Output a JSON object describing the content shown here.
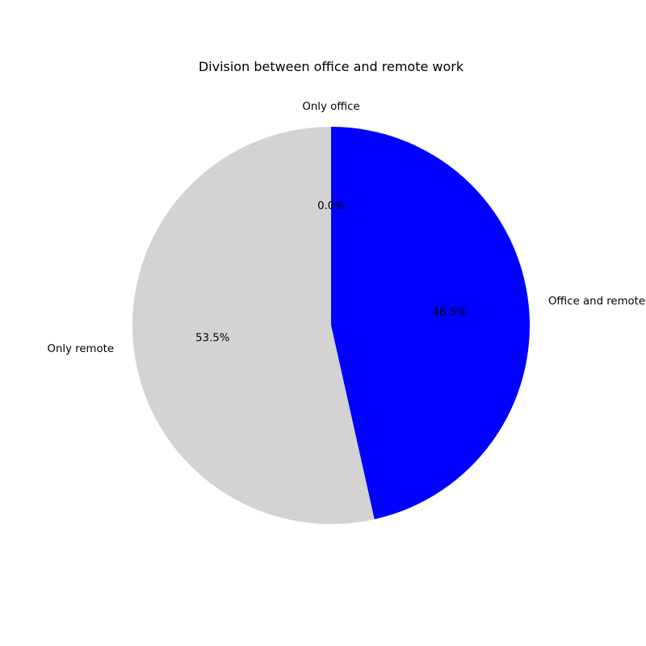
{
  "chart_data": {
    "type": "pie",
    "title": "Division between office and remote work",
    "slices": [
      {
        "label": "Only office",
        "value": 0.0,
        "pct_label": "0.0%",
        "color": "#1f77b4"
      },
      {
        "label": "Office and remote",
        "value": 46.5,
        "pct_label": "46.5%",
        "color": "#0000ff"
      },
      {
        "label": "Only remote",
        "value": 53.5,
        "pct_label": "53.5%",
        "color": "#d3d3d3"
      }
    ],
    "start_angle_deg": 90,
    "direction": "clockwise"
  }
}
